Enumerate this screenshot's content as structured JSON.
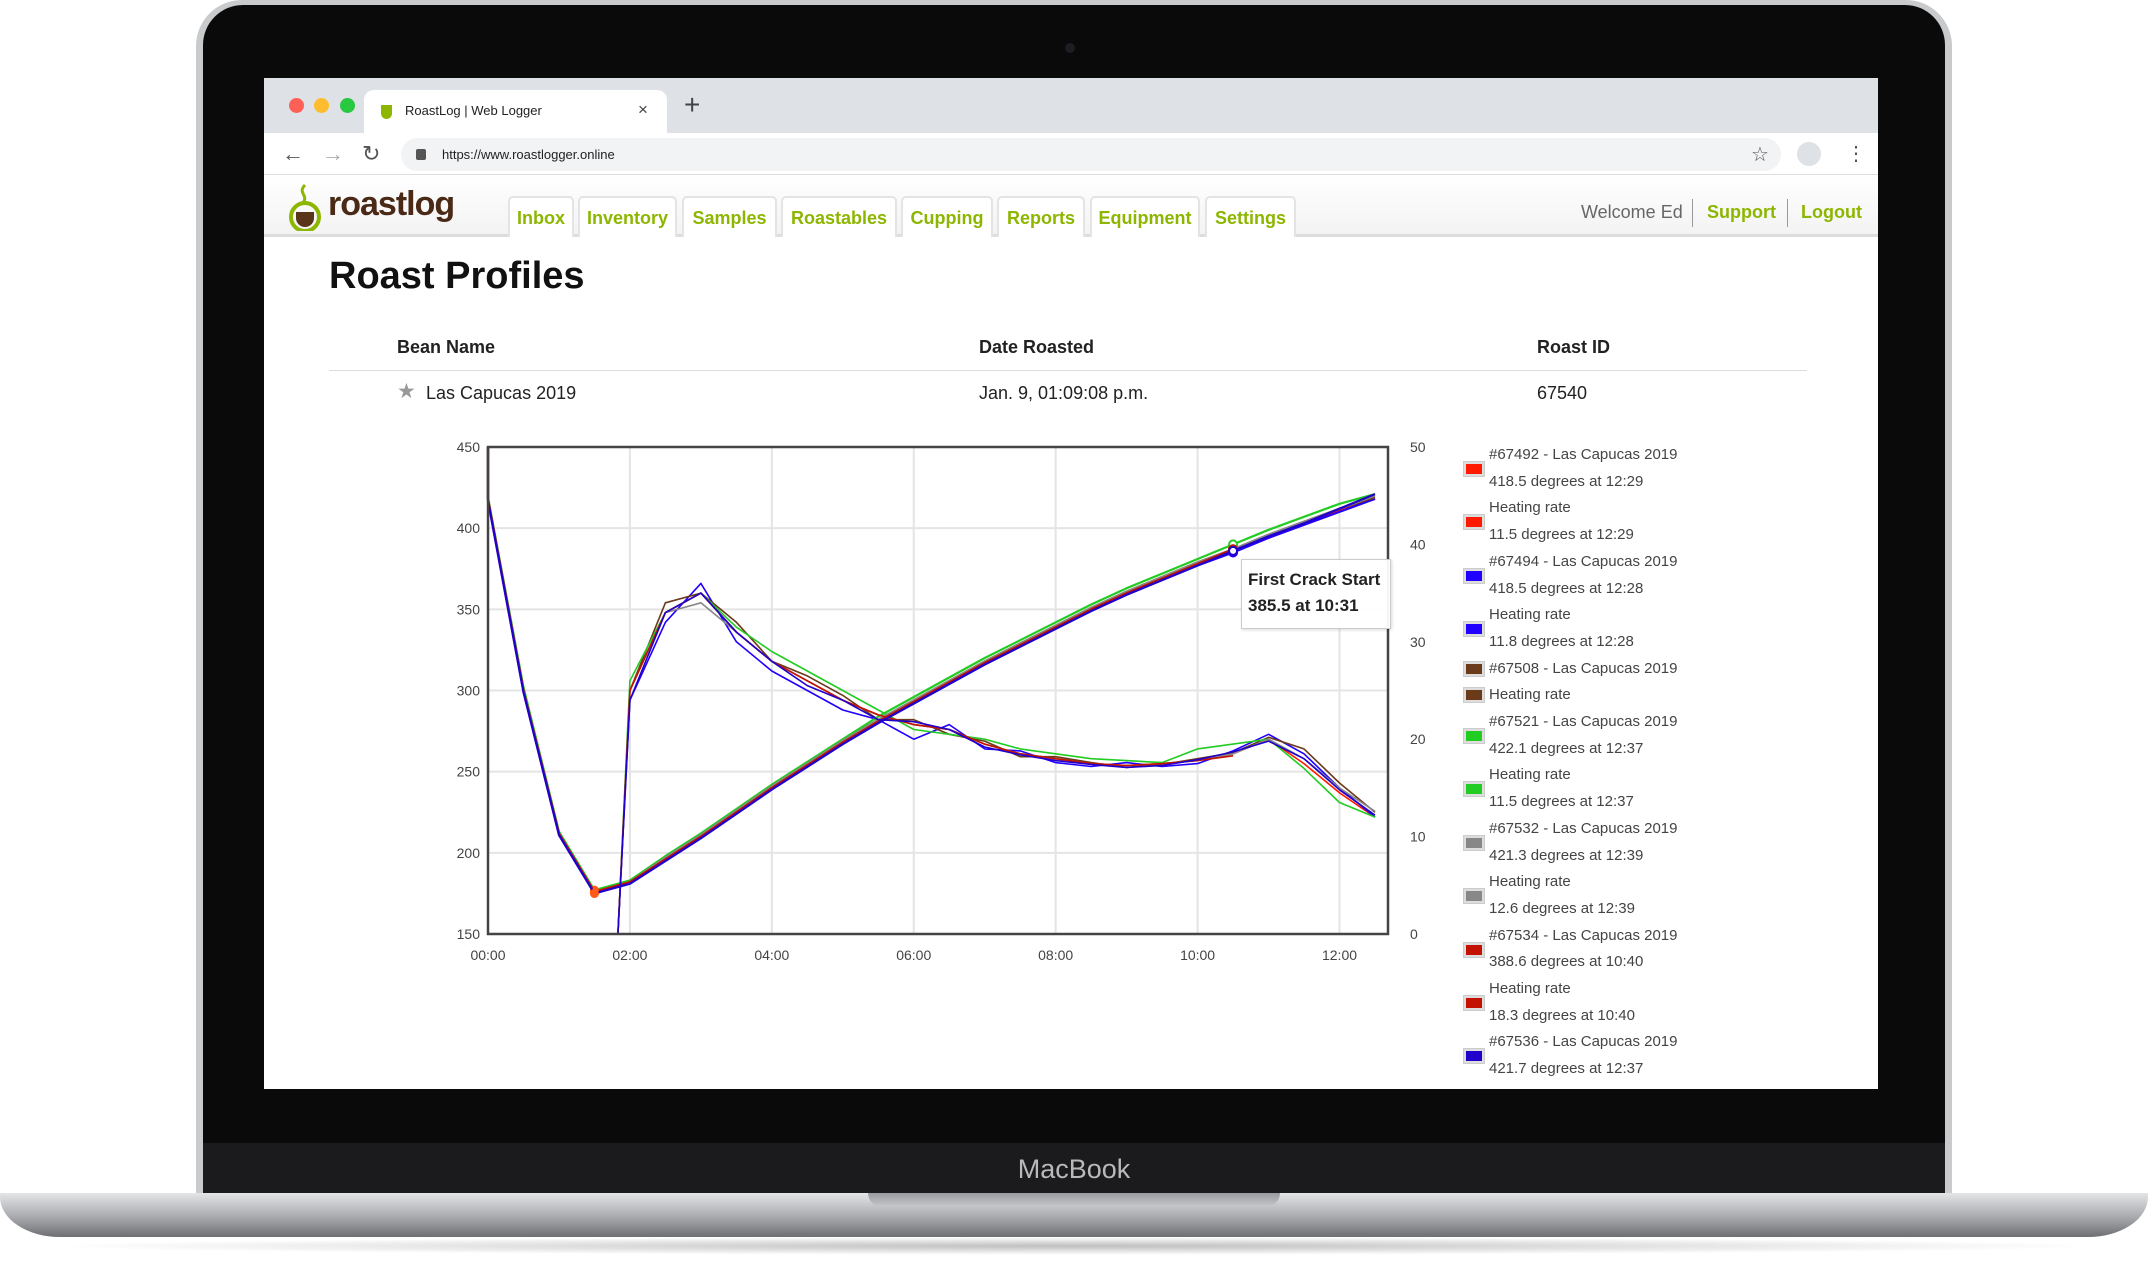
{
  "device": {
    "brand": "MacBook"
  },
  "browser": {
    "tab_title": "RoastLog | Web Logger",
    "url": "https://www.roastlogger.online",
    "new_tab": "+",
    "close_tab": "×"
  },
  "app": {
    "logo": "roastlog",
    "nav": [
      "Inbox",
      "Inventory",
      "Samples",
      "Roastables",
      "Cupping",
      "Reports",
      "Equipment",
      "Settings"
    ],
    "welcome": "Welcome Ed",
    "support": "Support",
    "logout": "Logout",
    "accent": "#8db600"
  },
  "page": {
    "title": "Roast Profiles",
    "columns": {
      "bean": "Bean Name",
      "date": "Date Roasted",
      "id": "Roast ID"
    },
    "row": {
      "bean": "Las Capucas 2019",
      "date": "Jan. 9, 01:09:08 p.m.",
      "id": "67540"
    }
  },
  "legend": [
    {
      "color": "#ff1a00",
      "lines": [
        "#67492 - Las Capucas 2019",
        "418.5 degrees at 12:29"
      ]
    },
    {
      "color": "#ff1a00",
      "lines": [
        "Heating rate",
        "11.5 degrees at 12:29"
      ]
    },
    {
      "color": "#2200ff",
      "lines": [
        "#67494 - Las Capucas 2019",
        "418.5 degrees at 12:28"
      ]
    },
    {
      "color": "#2200ff",
      "lines": [
        "Heating rate",
        "11.8 degrees at 12:28"
      ]
    },
    {
      "color": "#6b3a1a",
      "lines": [
        "#67508 - Las Capucas 2019"
      ]
    },
    {
      "color": "#6b3a1a",
      "lines": [
        "Heating rate"
      ]
    },
    {
      "color": "#22cc22",
      "lines": [
        "#67521 - Las Capucas 2019",
        "422.1 degrees at 12:37"
      ]
    },
    {
      "color": "#22cc22",
      "lines": [
        "Heating rate",
        "11.5 degrees at 12:37"
      ]
    },
    {
      "color": "#888888",
      "lines": [
        "#67532 - Las Capucas 2019",
        "421.3 degrees at 12:39"
      ]
    },
    {
      "color": "#888888",
      "lines": [
        "Heating rate",
        "12.6 degrees at 12:39"
      ]
    },
    {
      "color": "#c41200",
      "lines": [
        "#67534 - Las Capucas 2019",
        "388.6 degrees at 10:40"
      ]
    },
    {
      "color": "#c41200",
      "lines": [
        "Heating rate",
        "18.3 degrees at 10:40"
      ]
    },
    {
      "color": "#2200cc",
      "lines": [
        "#67536 - Las Capucas 2019",
        "421.7 degrees at 12:37"
      ]
    }
  ],
  "chart_data": {
    "type": "line",
    "xlim": [
      "00:00",
      "12:41"
    ],
    "xticks": [
      "00:00",
      "02:00",
      "04:00",
      "06:00",
      "08:00",
      "10:00",
      "12:00"
    ],
    "ylim_left": [
      150,
      450
    ],
    "yticks_left": [
      150,
      200,
      250,
      300,
      350,
      400,
      450
    ],
    "ylim_right": [
      0,
      50
    ],
    "yticks_right": [
      0,
      10,
      20,
      30,
      40,
      50
    ],
    "grid": true,
    "legend_placement": "right",
    "time": [
      "00:00",
      "00:30",
      "01:00",
      "01:30",
      "02:00",
      "02:30",
      "03:00",
      "03:30",
      "04:00",
      "04:30",
      "05:00",
      "05:30",
      "06:00",
      "06:30",
      "07:00",
      "07:30",
      "08:00",
      "08:30",
      "09:00",
      "09:30",
      "10:00",
      "10:30",
      "11:00",
      "11:30",
      "12:00",
      "12:30"
    ],
    "series": [
      {
        "name": "#67492 - Las Capucas 2019",
        "color": "#ff1a00",
        "temp": [
          418,
          300,
          212,
          176,
          182,
          196,
          210,
          225,
          240,
          254,
          268,
          281,
          293,
          305,
          317,
          328,
          339,
          350,
          360,
          369,
          378,
          386,
          395,
          403,
          411,
          418
        ],
        "ror": [
          null,
          null,
          null,
          null,
          25,
          33,
          35,
          31,
          28,
          26,
          24,
          22.5,
          21.5,
          21,
          19.5,
          18.5,
          18,
          17.5,
          17.3,
          17.5,
          17.8,
          18.5,
          20,
          17.5,
          14.5,
          12
        ]
      },
      {
        "name": "#67494 - Las Capucas 2019",
        "color": "#2200ff",
        "temp": [
          417,
          299,
          211,
          175,
          181,
          195,
          209,
          224,
          239,
          253,
          267,
          280,
          292,
          304,
          316,
          327,
          338,
          349,
          359,
          368,
          377,
          385,
          394,
          402,
          410,
          418
        ],
        "ror": [
          null,
          null,
          null,
          null,
          24,
          32,
          36,
          30,
          27,
          25,
          23,
          22,
          20,
          21.5,
          19,
          18.8,
          17.6,
          17.2,
          17.6,
          17.2,
          17.5,
          18.8,
          20.5,
          18.5,
          15,
          12
        ]
      },
      {
        "name": "#67508 - Las Capucas 2019",
        "color": "#6b3a1a",
        "temp": [
          418,
          301,
          212,
          176,
          182,
          196,
          211,
          226,
          241,
          255,
          269,
          282,
          294,
          306,
          318,
          329,
          340,
          351,
          361,
          370,
          379,
          387,
          396,
          404,
          412,
          419
        ],
        "ror": [
          null,
          null,
          null,
          null,
          25,
          34,
          35,
          32,
          28,
          26.5,
          24.5,
          22,
          22,
          20.5,
          19.8,
          18.2,
          18.2,
          17.6,
          17.1,
          17.4,
          18,
          18.6,
          20.2,
          19,
          15.5,
          12.5
        ]
      },
      {
        "name": "#67521 - Las Capucas 2019",
        "color": "#22cc22",
        "temp": [
          419,
          302,
          213,
          177,
          183,
          198,
          212,
          227,
          242,
          256,
          270,
          284,
          296,
          308,
          320,
          331,
          342,
          353,
          363,
          372,
          381,
          390,
          399,
          407,
          415,
          421
        ],
        "ror": [
          null,
          null,
          null,
          null,
          26,
          33,
          35,
          31.5,
          29,
          27,
          25,
          23,
          21,
          20.5,
          20,
          19,
          18.5,
          18,
          17.8,
          17.6,
          19,
          19.5,
          20,
          17,
          13.5,
          12
        ]
      },
      {
        "name": "#67532 - Las Capucas 2019",
        "color": "#888888",
        "temp": [
          418,
          300,
          212,
          176,
          182,
          197,
          211,
          226,
          241,
          255,
          269,
          282,
          294,
          306,
          318,
          329,
          340,
          351,
          361,
          370,
          379,
          387,
          396,
          404,
          412,
          420
        ],
        "ror": [
          null,
          null,
          null,
          null,
          25,
          33,
          34,
          31,
          28,
          26,
          24,
          22.5,
          21.5,
          21,
          19.5,
          18.5,
          18,
          17.5,
          17.3,
          17.5,
          17.8,
          18.5,
          20,
          18,
          15,
          12.6
        ]
      },
      {
        "name": "#67534 - Las Capucas 2019",
        "color": "#c41200",
        "temp": [
          418,
          300,
          212,
          176,
          182,
          196,
          210,
          225,
          240,
          254,
          268,
          281,
          293,
          305,
          317,
          328,
          339,
          350,
          360,
          369,
          378,
          387,
          null,
          null,
          null,
          null
        ],
        "ror": [
          null,
          null,
          null,
          null,
          25,
          33,
          35,
          31,
          28,
          26,
          24,
          22.5,
          21.5,
          21,
          19.5,
          18.5,
          18,
          17.5,
          17.3,
          17.5,
          17.8,
          18.3,
          null,
          null,
          null,
          null
        ]
      },
      {
        "name": "#67536 - Las Capucas 2019",
        "color": "#2200cc",
        "temp": [
          417,
          299,
          211,
          175,
          181,
          195,
          209,
          224,
          239,
          253,
          267,
          280,
          292,
          304,
          316,
          327,
          338,
          349,
          359,
          368,
          377,
          386,
          395,
          403,
          412,
          421
        ],
        "ror": [
          null,
          null,
          null,
          null,
          24,
          33,
          35,
          31,
          28,
          25.5,
          24,
          22,
          21.8,
          21,
          19.2,
          18.4,
          17.8,
          17.4,
          17.1,
          17.3,
          17.9,
          18.7,
          19.8,
          18,
          14.8,
          12.2
        ]
      }
    ],
    "annotations": [
      {
        "label": "First Crack Start",
        "value": "385.5 at 10:31"
      }
    ]
  }
}
